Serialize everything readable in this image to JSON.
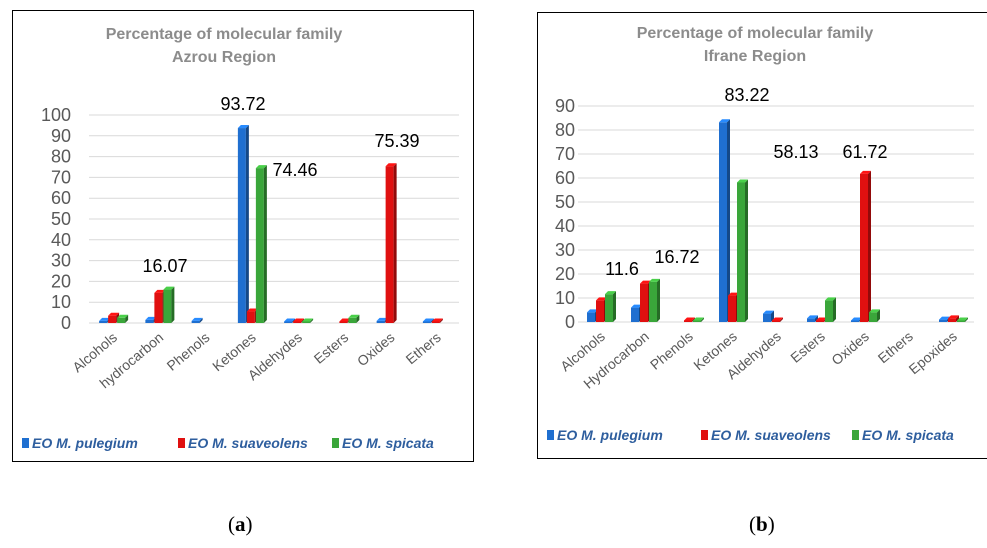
{
  "chart_data": [
    {
      "type": "bar",
      "title": "Percentage of molecular family",
      "subtitle": "Azrou Region",
      "categories": [
        "Alcohols",
        "hydrocarbon",
        "Phenols",
        "Ketones",
        "Aldehydes",
        "Esters",
        "Oxides",
        "Ethers"
      ],
      "series": [
        {
          "name": "EO M. pulegium",
          "color": "#1f6fd0",
          "values": [
            1.0,
            1.5,
            1.0,
            93.72,
            0.3,
            0.0,
            1.0,
            0.3
          ]
        },
        {
          "name": "EO M. suaveolens",
          "color": "#e01010",
          "values": [
            3.5,
            14.5,
            0.0,
            5.5,
            0.3,
            0.3,
            75.39,
            0.3
          ]
        },
        {
          "name": "EO M. spicata",
          "color": "#3aa63a",
          "values": [
            2.5,
            16.07,
            0.0,
            74.46,
            0.3,
            2.5,
            0.0,
            0.0
          ]
        }
      ],
      "data_labels": [
        "16.07",
        "93.72",
        "74.46",
        "75.39"
      ],
      "yticks": [
        "0",
        "10",
        "20",
        "30",
        "40",
        "50",
        "60",
        "70",
        "80",
        "90",
        "100"
      ],
      "ylim": [
        0,
        100
      ],
      "grid": true,
      "legend": "bottom",
      "caption": "a"
    },
    {
      "type": "bar",
      "title": "Percentage of molecular family",
      "subtitle": "Ifrane Region",
      "categories": [
        "Alcohols",
        "Hydrocarbon",
        "Phenols",
        "Ketones",
        "Aldehydes",
        "Esters",
        "Oxides",
        "Ethers",
        "Epoxides"
      ],
      "series": [
        {
          "name": "EO M. pulegium",
          "color": "#1f6fd0",
          "values": [
            4.0,
            6.0,
            0.0,
            83.22,
            3.5,
            1.5,
            0.5,
            0.0,
            1.0
          ]
        },
        {
          "name": "EO M. suaveolens",
          "color": "#e01010",
          "values": [
            9.0,
            16.0,
            0.5,
            11.0,
            0.3,
            0.5,
            61.72,
            0.0,
            1.5
          ]
        },
        {
          "name": "EO M. spicata",
          "color": "#3aa63a",
          "values": [
            11.6,
            16.72,
            0.5,
            58.13,
            0.0,
            9.0,
            4.0,
            0.0,
            0.5
          ]
        }
      ],
      "data_labels": [
        "11.6",
        "16.72",
        "83.22",
        "58.13",
        "61.72"
      ],
      "yticks": [
        "0",
        "10",
        "20",
        "30",
        "40",
        "50",
        "60",
        "70",
        "80",
        "90"
      ],
      "ylim": [
        0,
        90
      ],
      "grid": true,
      "legend": "bottom",
      "caption": "b"
    }
  ]
}
